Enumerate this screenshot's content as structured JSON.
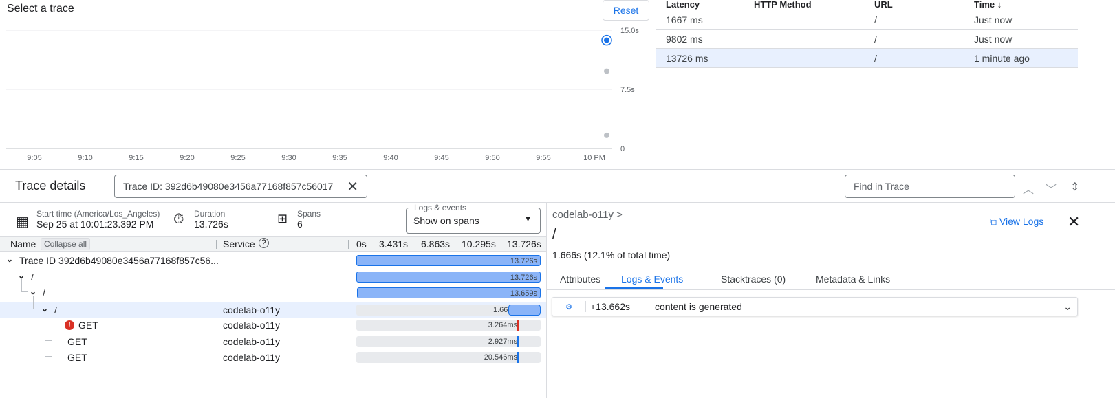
{
  "chart": {
    "title": "Select a trace",
    "reset_label": "Reset"
  },
  "chart_data": {
    "type": "scatter",
    "title": "Select a trace",
    "xlabel": "",
    "ylabel": "",
    "x_ticks": [
      "9:05",
      "9:10",
      "9:15",
      "9:20",
      "9:25",
      "9:30",
      "9:35",
      "9:40",
      "9:45",
      "9:50",
      "9:55",
      "10 PM"
    ],
    "y_ticks": [
      "15.0s",
      "7.5s",
      "0"
    ],
    "ylim": [
      0,
      15
    ],
    "grid": true,
    "points": [
      {
        "x": "10:01",
        "y": 13.726,
        "selected": true
      },
      {
        "x": "10:01",
        "y": 9.802
      },
      {
        "x": "10:01",
        "y": 1.667
      }
    ]
  },
  "table": {
    "headers": [
      "Latency",
      "HTTP Method",
      "URL",
      "Time"
    ],
    "sort_icon": "arrow-down-icon",
    "rows": [
      {
        "latency": "1667 ms",
        "method": "",
        "url": "/",
        "time": "Just now"
      },
      {
        "latency": "9802 ms",
        "method": "",
        "url": "/",
        "time": "Just now"
      },
      {
        "latency": "13726 ms",
        "method": "",
        "url": "/",
        "time": "1 minute ago",
        "selected": true
      }
    ]
  },
  "details": {
    "title": "Trace details",
    "trace_id_value": "Trace ID: 392d6b49080e3456a77168f857c56017",
    "find_placeholder": "Find in Trace",
    "start_label": "Start time (America/Los_Angeles)",
    "start_value": "Sep 25 at 10:01:23.392 PM",
    "duration_label": "Duration",
    "duration_value": "13.726s",
    "spans_label": "Spans",
    "spans_value": "6",
    "logs_label": "Logs & events",
    "logs_value": "Show on spans"
  },
  "columns": {
    "name": "Name",
    "collapse": "Collapse all",
    "service": "Service",
    "ticks": [
      "0s",
      "3.431s",
      "6.863s",
      "10.295s",
      "13.726s"
    ]
  },
  "spans": [
    {
      "name": "Trace ID 392d6b49080e3456a77168f857c56...",
      "service": "",
      "label": "13.726s",
      "start": 0,
      "dur": 13.726,
      "depth": 0,
      "chev": true
    },
    {
      "name": "/",
      "service": "",
      "label": "13.726s",
      "start": 0,
      "dur": 13.726,
      "depth": 1,
      "chev": true
    },
    {
      "name": "/",
      "service": "",
      "label": "13.659s",
      "start": 0.067,
      "dur": 13.659,
      "depth": 2,
      "chev": true
    },
    {
      "name": "/",
      "service": "codelab-o11y",
      "label": "1.666s",
      "start": 12.06,
      "dur": 1.666,
      "depth": 3,
      "chev": true,
      "selected": true
    },
    {
      "name": "GET",
      "service": "codelab-o11y",
      "label": "3.264ms",
      "start": 13.0,
      "dur": 0.003,
      "depth": 4,
      "error": true
    },
    {
      "name": "GET",
      "service": "codelab-o11y",
      "label": "2.927ms",
      "start": 13.0,
      "dur": 0.003,
      "depth": 4
    },
    {
      "name": "GET",
      "service": "codelab-o11y",
      "label": "20.546ms",
      "start": 13.0,
      "dur": 0.02,
      "depth": 4
    }
  ],
  "panel": {
    "breadcrumb": "codelab-o11y >",
    "title": "/",
    "summary": "1.666s (12.1% of total time)",
    "view_logs": "View Logs",
    "tabs": [
      "Attributes",
      "Logs & Events",
      "Stacktraces (0)",
      "Metadata & Links"
    ],
    "active_tab": 1,
    "event": {
      "time": "+13.662s",
      "text": "content is generated"
    }
  },
  "colors": {
    "accent": "#1a73e8",
    "bar": "#8ab4f8",
    "error": "#d93025"
  }
}
